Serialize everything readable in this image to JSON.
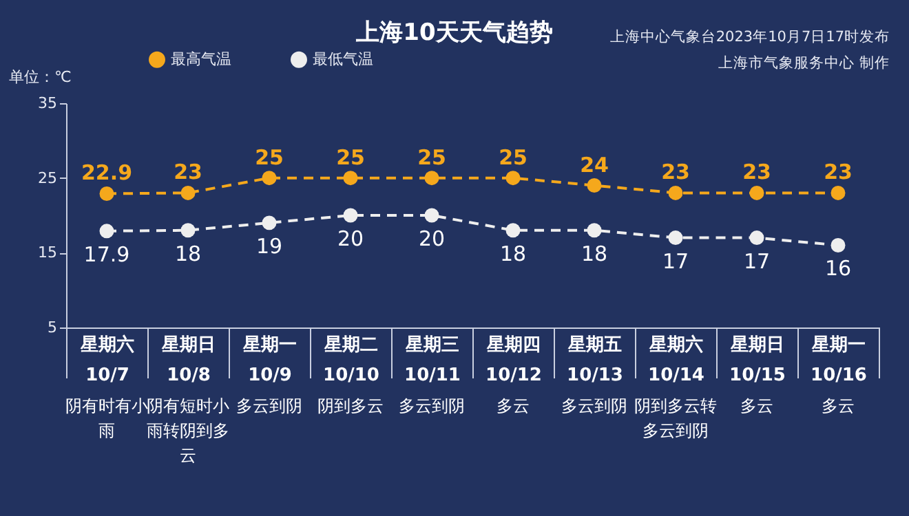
{
  "chart_data": {
    "type": "line",
    "title": "上海10天天气趋势",
    "ylabel": "单位：℃",
    "categories": [
      "星期六 10/7",
      "星期日 10/8",
      "星期一 10/9",
      "星期二 10/10",
      "星期三 10/11",
      "星期四 10/12",
      "星期五 10/13",
      "星期六 10/14",
      "星期日 10/15",
      "星期一 10/16"
    ],
    "series": [
      {
        "name": "最高气温",
        "color": "#f5a81c",
        "values": [
          22.9,
          23,
          25,
          25,
          25,
          25,
          24,
          23,
          23,
          23
        ]
      },
      {
        "name": "最低气温",
        "color": "#eeeeee",
        "values": [
          17.9,
          18,
          19,
          20,
          20,
          18,
          18,
          17,
          17,
          16
        ]
      }
    ],
    "ylim": [
      5,
      35
    ],
    "yticks": [
      5,
      15,
      25,
      35
    ],
    "grid": false,
    "legend": "top left",
    "marker": "circle",
    "line_style": "dashed",
    "data_labels": true,
    "annotations": [
      "上海中心气象台2023年10月7日17时发布",
      "上海市气象服务中心 制作",
      "阴有时有小雨",
      "阴有短时小雨转阴到多云",
      "多云到阴",
      "阴到多云",
      "多云到阴",
      "多云",
      "多云到阴",
      "阴到多云转多云到阴",
      "多云",
      "多云"
    ]
  }
}
